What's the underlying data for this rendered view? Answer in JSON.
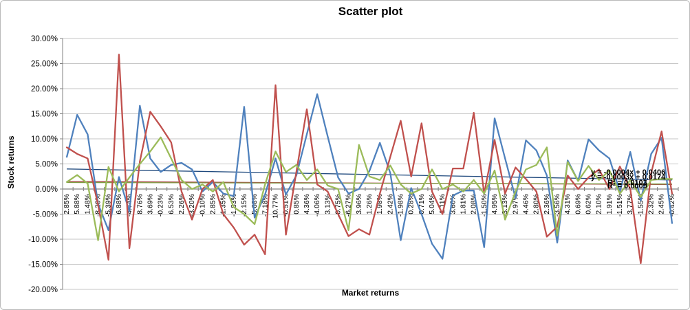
{
  "title": "Scatter plot",
  "axes": {
    "y_title": "Stock returns",
    "x_title": "Market returns",
    "y_ticks": [
      "30.00%",
      "25.00%",
      "20.00%",
      "15.00%",
      "10.00%",
      "5.00%",
      "0.00%",
      "-5.00%",
      "-10.00%",
      "-15.00%",
      "-20.00%"
    ]
  },
  "annotations": [
    "y = -0.0004x + 0.0406",
    "y = -0.0003x + 0.0174",
    "R² = 0.0103",
    "R² = 0.0009"
  ],
  "colors": {
    "series_blue": "#4F81BD",
    "series_red": "#C0504D",
    "series_green": "#9BBB59",
    "trend_blue": "#1F497D",
    "trend_red": "#A84B48",
    "trend_green": "#7E9A40",
    "gridline": "#C6C6C6",
    "axis_line": "#808080",
    "tick_text": "#000000"
  },
  "chart_data": {
    "type": "line",
    "title": "Scatter plot",
    "xlabel": "Market returns",
    "ylabel": "Stock returns",
    "ylim": [
      -20,
      30
    ],
    "y_tick_step": 5,
    "grid": true,
    "legend": "none",
    "x_tick_label_rotation": -90,
    "categories": [
      "2.85%",
      "5.88%",
      "1.48%",
      "-8.20%",
      "-5.39%",
      "6.88%",
      "-4.74%",
      "8.76%",
      "3.69%",
      "-0.23%",
      "6.53%",
      "2.26%",
      "-3.20%",
      "-0.10%",
      "2.85%",
      "-1.35%",
      "-1.83%",
      "-2.15%",
      "-5.68%",
      "-7.18%",
      "10.77%",
      "-0.51%",
      "0.85%",
      "4.36%",
      "-4.06%",
      "3.13%",
      "-0.75%",
      "-6.27%",
      "3.96%",
      "1.26%",
      "1.98%",
      "2.42%",
      "-1.98%",
      "0.28%",
      "0.71%",
      "5.04%",
      "1.11%",
      "3.60%",
      "1.81%",
      "2.08%",
      "-1.50%",
      "4.95%",
      "-3.13%",
      "2.97%",
      "4.46%",
      "2.80%",
      "2.36%",
      "-3.56%",
      "4.31%",
      "0.69%",
      "0.62%",
      "2.10%",
      "1.91%",
      "-1.51%",
      "3.77%",
      "-1.55%",
      "2.32%",
      "2.45%",
      "-0.42%"
    ],
    "series": [
      {
        "name": "stock-returns-blue",
        "color": "#4F81BD",
        "values": [
          6.4,
          14.8,
          10.9,
          -3.0,
          -8.2,
          2.4,
          -4.5,
          16.6,
          6.1,
          3.4,
          4.8,
          5.2,
          3.9,
          -0.5,
          1.4,
          -0.9,
          -1.4,
          16.4,
          -5.7,
          -1.1,
          6.1,
          -1.1,
          2.7,
          10.9,
          18.9,
          10.5,
          2.3,
          -0.9,
          0.0,
          3.6,
          9.2,
          3.2,
          -10.2,
          0.2,
          -5.0,
          -10.9,
          -13.9,
          -1.3,
          -0.3,
          -0.3,
          -11.6,
          14.1,
          6.1,
          -1.8,
          9.7,
          7.7,
          2.7,
          -10.7,
          5.7,
          1.6,
          9.9,
          7.7,
          6.1,
          -0.5,
          7.4,
          -2.3,
          7.0,
          10.2,
          -6.8
        ]
      },
      {
        "name": "stock-returns-red",
        "color": "#C0504D",
        "values": [
          8.3,
          7.0,
          6.1,
          -3.2,
          -14.1,
          26.8,
          -11.8,
          5.5,
          15.4,
          12.5,
          9.3,
          -0.5,
          -6.1,
          0.0,
          1.8,
          -5.0,
          -7.7,
          -11.1,
          -9.1,
          -13.0,
          20.7,
          -9.1,
          3.4,
          15.9,
          0.9,
          -0.5,
          -5.0,
          -9.4,
          -8.0,
          -9.1,
          -0.9,
          6.4,
          13.6,
          2.5,
          13.1,
          -0.5,
          -5.0,
          4.1,
          4.1,
          15.2,
          -0.9,
          9.8,
          -0.9,
          4.3,
          2.0,
          -0.5,
          -9.5,
          -7.5,
          2.7,
          0.0,
          2.3,
          3.9,
          0.0,
          4.5,
          0.0,
          -14.8,
          3.2,
          11.5,
          -0.9
        ]
      },
      {
        "name": "stock-returns-green",
        "color": "#9BBB59",
        "values": [
          1.4,
          2.8,
          1.1,
          -10.2,
          4.4,
          -0.5,
          2.3,
          5.0,
          7.5,
          10.3,
          6.1,
          1.8,
          0.0,
          0.9,
          -0.5,
          1.4,
          -3.6,
          -5.0,
          -7.0,
          0.9,
          7.5,
          3.4,
          4.8,
          1.8,
          3.9,
          0.7,
          0.0,
          -8.2,
          8.8,
          2.5,
          1.8,
          4.7,
          0.9,
          -0.9,
          0.0,
          3.9,
          0.0,
          0.9,
          -0.5,
          1.8,
          -0.9,
          3.7,
          -6.1,
          -0.5,
          3.9,
          4.8,
          8.3,
          -9.3,
          5.4,
          1.6,
          4.6,
          1.8,
          3.7,
          -0.9,
          1.8,
          -1.6,
          1.8,
          2.0,
          2.0
        ]
      }
    ],
    "trendlines": [
      {
        "name": "trend-blue",
        "color": "#1F497D",
        "start": 4.0,
        "end": 1.8,
        "equation": "y = -0.0004x + 0.0406",
        "r2": "R² = 0.0103"
      },
      {
        "name": "trend-red",
        "color": "#A84B48",
        "start": 1.5,
        "end": 0.9,
        "equation": "y = -0.0003x + 0.0174",
        "r2": "R² = 0.0009"
      },
      {
        "name": "trend-green",
        "color": "#7E9A40",
        "start": 1.3,
        "end": 1.0,
        "equation": "",
        "r2": ""
      }
    ]
  }
}
